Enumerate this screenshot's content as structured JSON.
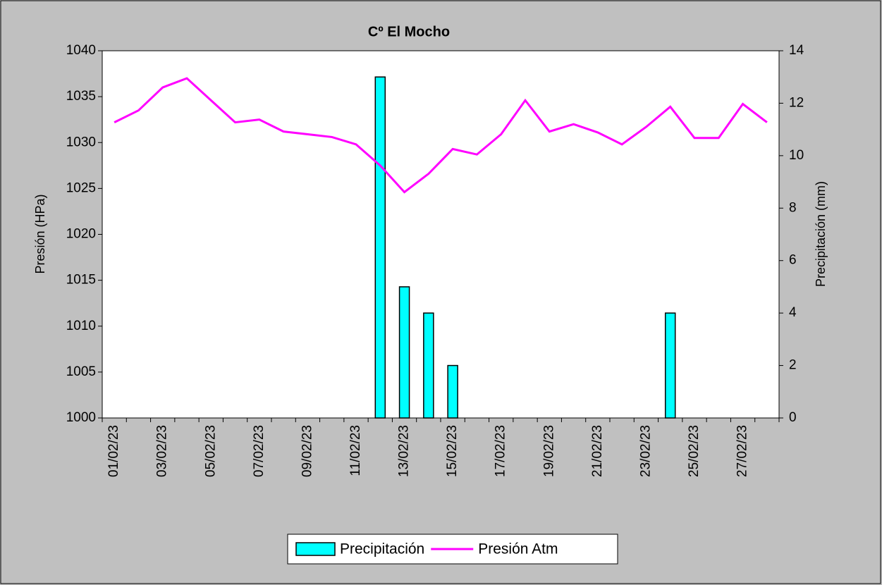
{
  "chart_data": {
    "type": "bar",
    "title": "Cº El Mocho",
    "y_label": "Presión (HPa)",
    "y2_label": "Precipitación (mm)",
    "categories": [
      "01/02/23",
      null,
      "03/02/23",
      null,
      "05/02/23",
      null,
      "07/02/23",
      null,
      "09/02/23",
      null,
      "11/02/23",
      null,
      "13/02/23",
      null,
      "15/02/23",
      null,
      "17/02/23",
      null,
      "19/02/23",
      null,
      "21/02/23",
      null,
      "23/02/23",
      null,
      "25/02/23",
      null,
      "27/02/23",
      null
    ],
    "series": [
      {
        "name": "Precipitación",
        "type": "bar",
        "axis": "y2",
        "color": "#00ffff",
        "values": [
          0,
          0,
          0,
          0,
          0,
          0,
          0,
          0,
          0,
          0,
          0,
          13,
          5,
          4,
          2,
          0,
          0,
          0,
          0,
          0,
          0,
          0,
          0,
          4,
          0,
          0,
          0,
          0
        ]
      },
      {
        "name": "Presión Atm",
        "type": "line",
        "color": "#ff00ff",
        "values": [
          1032.2,
          1033.5,
          1036.0,
          1037.0,
          1034.6,
          1032.2,
          1032.5,
          1031.2,
          1030.9,
          1030.6,
          1029.8,
          1027.5,
          1024.6,
          1026.6,
          1029.3,
          1028.7,
          1030.9,
          1034.6,
          1031.2,
          1032.0,
          1031.1,
          1029.8,
          1031.7,
          1033.9,
          1030.5,
          1030.5,
          1034.2,
          1032.2
        ]
      }
    ],
    "ylim": [
      1000,
      1040
    ],
    "yticks": [
      1000,
      1005,
      1010,
      1015,
      1020,
      1025,
      1030,
      1035,
      1040
    ],
    "y2lim": [
      0,
      14
    ],
    "y2ticks": [
      0,
      2,
      4,
      6,
      8,
      10,
      12,
      14
    ],
    "grid": false,
    "legend": "bottom"
  }
}
